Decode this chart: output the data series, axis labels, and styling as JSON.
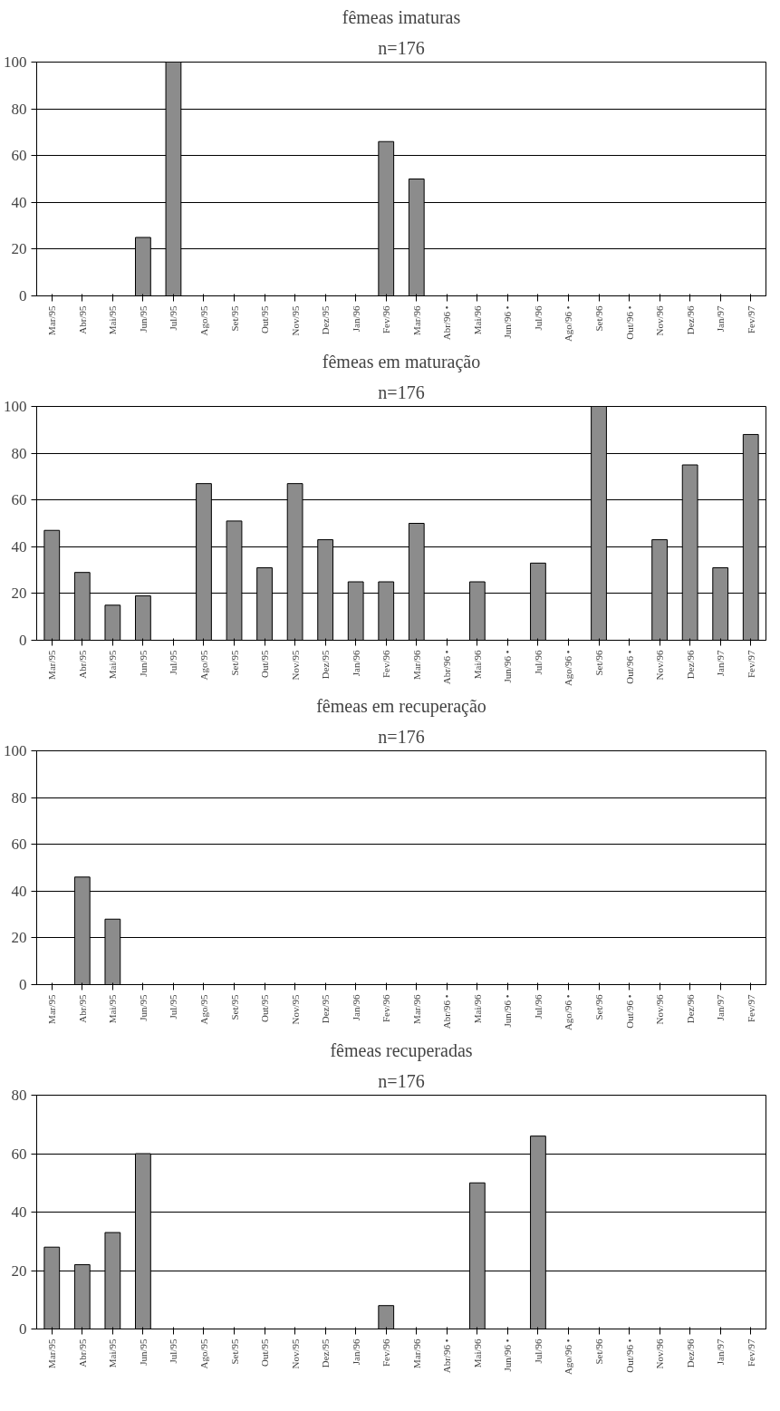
{
  "chart_data": [
    {
      "type": "bar",
      "title": "fêmeas imaturas",
      "subtitle": "n=176",
      "categories": [
        "Mar/95",
        "Abr/95",
        "Mai/95",
        "Jun/95",
        "Jul/95",
        "Ago/95",
        "Set/95",
        "Out/95",
        "Nov/95",
        "Dez/95",
        "Jan/96",
        "Fev/96",
        "Mar/96",
        "Abr/96 •",
        "Mai/96",
        "Jun/96 •",
        "Jul/96",
        "Ago/96 •",
        "Set/96",
        "Out/96 •",
        "Nov/96",
        "Dez/96",
        "Jan/97",
        "Fev/97"
      ],
      "values": [
        0,
        0,
        0,
        25,
        100,
        0,
        0,
        0,
        0,
        0,
        0,
        66,
        50,
        0,
        0,
        0,
        0,
        0,
        0,
        0,
        0,
        0,
        0,
        0
      ],
      "color": "#8c8c8c",
      "ylim": [
        0,
        100
      ],
      "yticks": [
        0,
        20,
        40,
        60,
        80,
        100
      ],
      "grid": "y"
    },
    {
      "type": "bar",
      "title": "fêmeas em maturação",
      "subtitle": "n=176",
      "categories": [
        "Mar/95",
        "Abr/95",
        "Mai/95",
        "Jun/95",
        "Jul/95",
        "Ago/95",
        "Set/95",
        "Out/95",
        "Nov/95",
        "Dez/95",
        "Jan/96",
        "Fev/96",
        "Mar/96",
        "Abr/96 •",
        "Mai/96",
        "Jun/96 •",
        "Jul/96",
        "Ago/96 •",
        "Set/96",
        "Out/96 •",
        "Nov/96",
        "Dez/96",
        "Jan/97",
        "Fev/97"
      ],
      "values": [
        47,
        29,
        15,
        19,
        0,
        67,
        51,
        31,
        67,
        43,
        25,
        25,
        50,
        0,
        25,
        0,
        33,
        0,
        100,
        0,
        43,
        75,
        31,
        88
      ],
      "color": "#8c8c8c",
      "ylim": [
        0,
        100
      ],
      "yticks": [
        0,
        20,
        40,
        60,
        80,
        100
      ],
      "grid": "y"
    },
    {
      "type": "bar",
      "title": "fêmeas em recuperação",
      "subtitle": "n=176",
      "categories": [
        "Mar/95",
        "Abr/95",
        "Mai/95",
        "Jun/95",
        "Jul/95",
        "Ago/95",
        "Set/95",
        "Out/95",
        "Nov/95",
        "Dez/95",
        "Jan/96",
        "Fev/96",
        "Mar/96",
        "Abr/96 •",
        "Mai/96",
        "Jun/96 •",
        "Jul/96",
        "Ago/96 •",
        "Set/96",
        "Out/96 •",
        "Nov/96",
        "Dez/96",
        "Jan/97",
        "Fev/97"
      ],
      "values": [
        0,
        46,
        28,
        0,
        0,
        0,
        0,
        0,
        0,
        0,
        0,
        0,
        0,
        0,
        0,
        0,
        0,
        0,
        0,
        0,
        0,
        0,
        0,
        0
      ],
      "color": "#8c8c8c",
      "ylim": [
        0,
        100
      ],
      "yticks": [
        0,
        20,
        40,
        60,
        80,
        100
      ],
      "grid": "y"
    },
    {
      "type": "bar",
      "title": "fêmeas recuperadas",
      "subtitle": "n=176",
      "categories": [
        "Mar/95",
        "Abr/95",
        "Mai/95",
        "Jun/95",
        "Jul/95",
        "Ago/95",
        "Set/95",
        "Out/95",
        "Nov/95",
        "Dez/95",
        "Jan/96",
        "Fev/96",
        "Mar/96",
        "Abr/96 •",
        "Mai/96",
        "Jun/96 •",
        "Jul/96",
        "Ago/96 •",
        "Set/96",
        "Out/96 •",
        "Nov/96",
        "Dez/96",
        "Jan/97",
        "Fev/97"
      ],
      "values": [
        28,
        22,
        33,
        60,
        0,
        0,
        0,
        0,
        0,
        0,
        0,
        8,
        0,
        0,
        50,
        0,
        66,
        0,
        0,
        0,
        0,
        0,
        0,
        0
      ],
      "color": "#8c8c8c",
      "ylim": [
        0,
        80
      ],
      "yticks": [
        0,
        20,
        40,
        60,
        80
      ],
      "grid": "y"
    }
  ]
}
